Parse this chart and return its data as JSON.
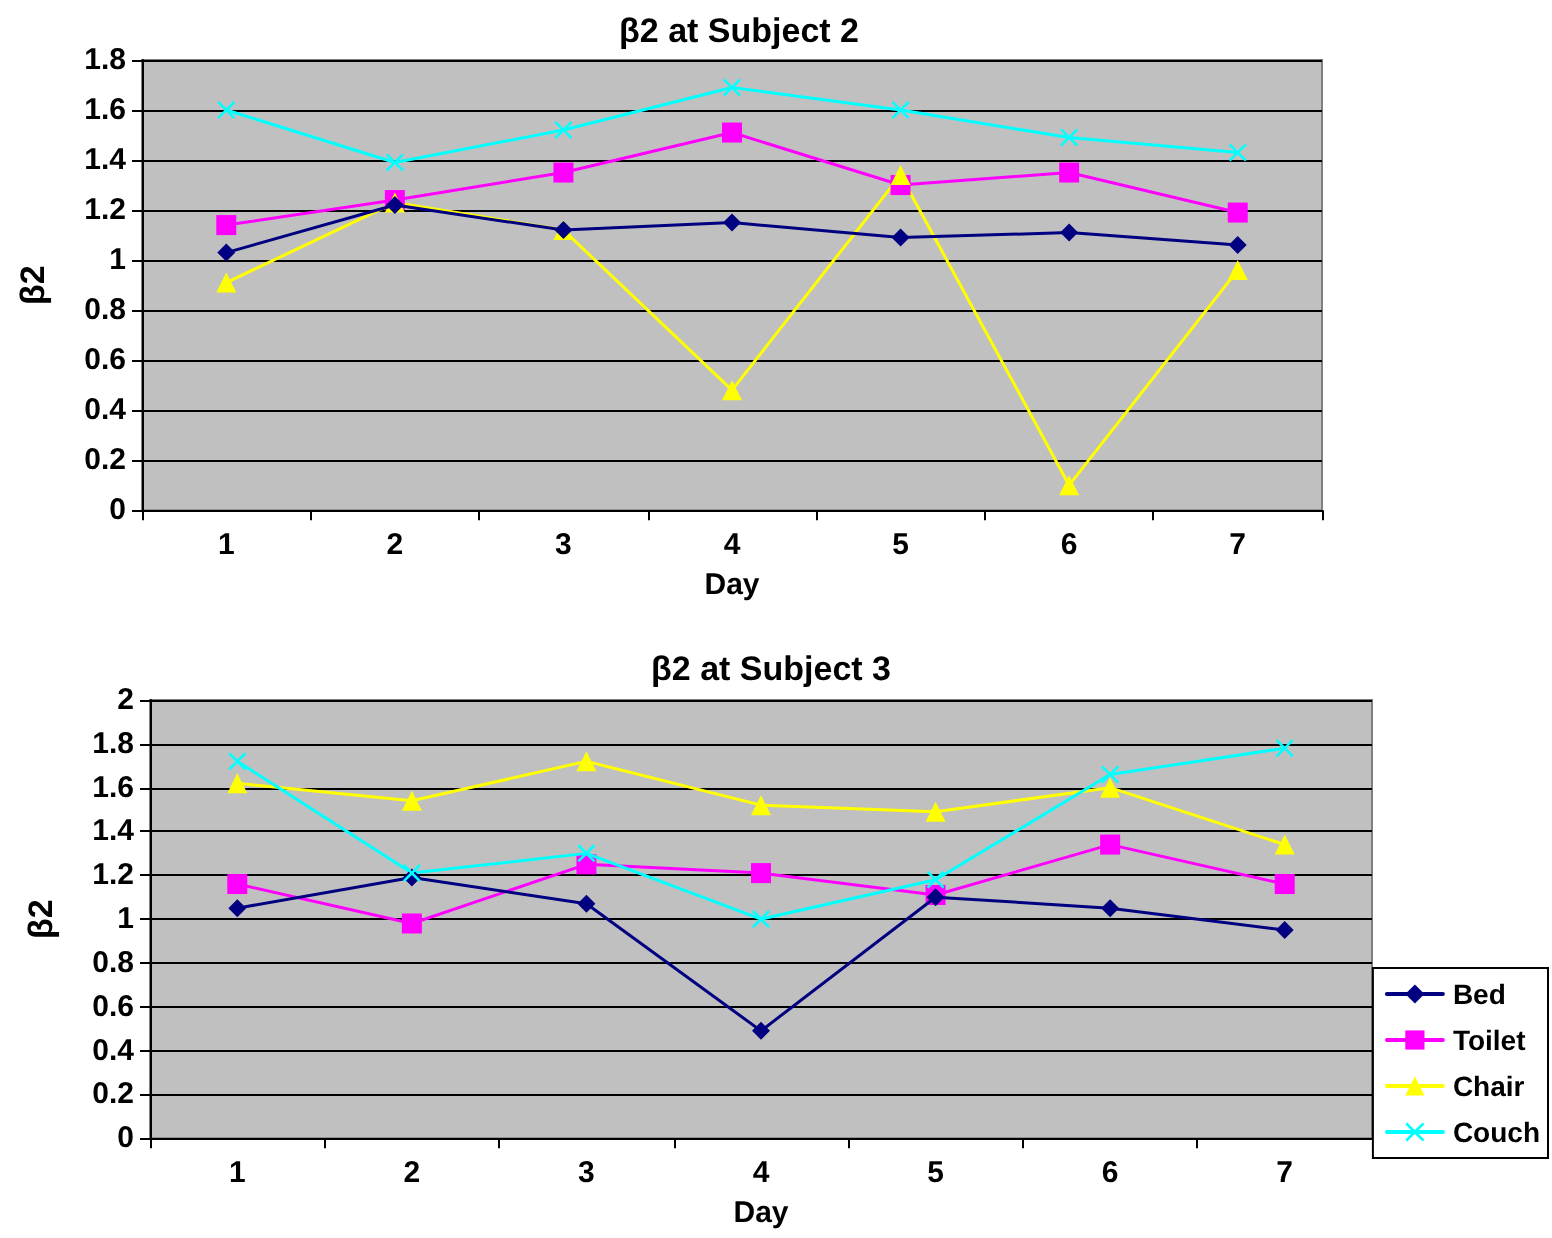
{
  "chart_data": [
    {
      "type": "line",
      "title": "β2 at Subject 2",
      "xlabel": "Day",
      "ylabel": "β2",
      "categories": [
        "1",
        "2",
        "3",
        "4",
        "5",
        "6",
        "7"
      ],
      "series": [
        {
          "color": "#000080",
          "marker": "diamond",
          "values": [
            1.03,
            1.22,
            1.12,
            1.15,
            1.09,
            1.11,
            1.06
          ]
        },
        {
          "color": "#ff00ff",
          "marker": "square",
          "values": [
            1.14,
            1.24,
            1.35,
            1.51,
            1.3,
            1.35,
            1.19
          ]
        },
        {
          "color": "#ffff00",
          "marker": "triangle",
          "values": [
            0.91,
            1.23,
            1.12,
            0.48,
            1.34,
            0.1,
            0.96
          ]
        },
        {
          "color": "#00ffff",
          "marker": "cross",
          "values": [
            1.6,
            1.39,
            1.52,
            1.69,
            1.6,
            1.49,
            1.43
          ]
        }
      ],
      "ylim": [
        0,
        1.8
      ],
      "yticks": [
        0,
        0.2,
        0.4,
        0.6,
        0.8,
        1,
        1.2,
        1.4,
        1.6,
        1.8
      ],
      "grid": "y",
      "legend": false
    },
    {
      "type": "line",
      "title": "β2 at Subject 3",
      "xlabel": "Day",
      "ylabel": "β2",
      "categories": [
        "1",
        "2",
        "3",
        "4",
        "5",
        "6",
        "7"
      ],
      "series": [
        {
          "name": "Bed",
          "color": "#000080",
          "marker": "diamond",
          "values": [
            1.05,
            1.19,
            1.07,
            0.49,
            1.1,
            1.05,
            0.95
          ]
        },
        {
          "name": "Toilet",
          "color": "#ff00ff",
          "marker": "square",
          "values": [
            1.16,
            0.98,
            1.25,
            1.21,
            1.11,
            1.34,
            1.16
          ]
        },
        {
          "name": "Chair",
          "color": "#ffff00",
          "marker": "triangle",
          "values": [
            1.62,
            1.54,
            1.72,
            1.52,
            1.49,
            1.6,
            1.34
          ]
        },
        {
          "name": "Couch",
          "color": "#00ffff",
          "marker": "cross",
          "values": [
            1.72,
            1.21,
            1.3,
            1.0,
            1.18,
            1.66,
            1.78
          ]
        }
      ],
      "ylim": [
        0,
        2
      ],
      "yticks": [
        0,
        0.2,
        0.4,
        0.6,
        0.8,
        1,
        1.2,
        1.4,
        1.6,
        1.8,
        2
      ],
      "grid": "y",
      "legend": "bottom right"
    }
  ]
}
